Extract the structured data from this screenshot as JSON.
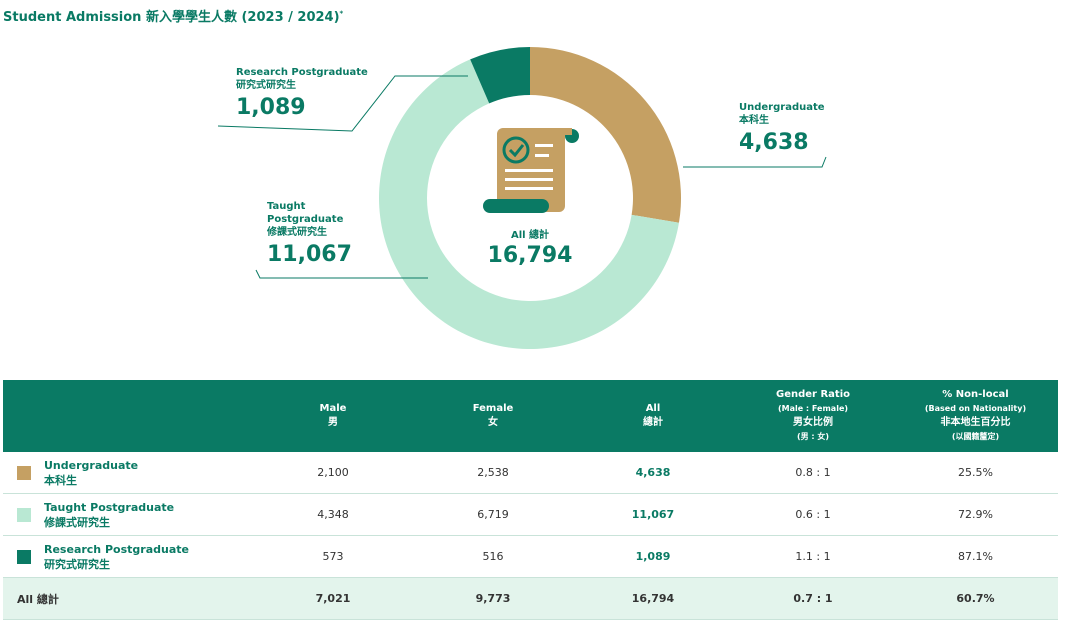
{
  "title": "Student Admission 新入學學生人數 (2023 / 2024)",
  "title_mark": "*",
  "center": {
    "label": "All 總計",
    "value": "16,794"
  },
  "colors": {
    "undergraduate": "#c5a063",
    "taught": "#b9e8d3",
    "research": "#0a7a64",
    "header": "#0a7a64"
  },
  "chart_data": {
    "type": "pie",
    "style": "donut",
    "total": 16794,
    "slices": [
      {
        "label_en": "Undergraduate",
        "label_zh": "本科生",
        "value": 4638,
        "display": "4,638",
        "color": "#c5a063"
      },
      {
        "label_en": "Taught Postgraduate",
        "label_zh": "修課式研究生",
        "value": 11067,
        "display": "11,067",
        "color": "#b9e8d3"
      },
      {
        "label_en": "Research Postgraduate",
        "label_zh": "研究式研究生",
        "value": 1089,
        "display": "1,089",
        "color": "#0a7a64"
      }
    ]
  },
  "callouts": {
    "research": {
      "name1": "Research Postgraduate",
      "name2": "研究式研究生",
      "value": "1,089"
    },
    "undergrad": {
      "name1": "Undergraduate",
      "name2": "本科生",
      "value": "4,638"
    },
    "taught": {
      "name1": "Taught",
      "name2": "Postgraduate",
      "name3": "修課式研究生",
      "value": "11,067"
    }
  },
  "table": {
    "headers": {
      "male": {
        "en": "Male",
        "zh": "男"
      },
      "female": {
        "en": "Female",
        "zh": "女"
      },
      "all": {
        "en": "All",
        "zh": "總計"
      },
      "ratio": {
        "en": "Gender Ratio",
        "sub": "(Male : Female)",
        "zh": "男女比例",
        "zh_sub": "(男 : 女)"
      },
      "nonlocal": {
        "en": "% Non-local",
        "sub": "(Based on Nationality)",
        "zh": "非本地生百分比",
        "zh_sub": "(以國籍釐定)"
      }
    },
    "rows": [
      {
        "en": "Undergraduate",
        "zh": "本科生",
        "male": "2,100",
        "female": "2,538",
        "all": "4,638",
        "ratio": "0.8 : 1",
        "nonlocal": "25.5%"
      },
      {
        "en": "Taught Postgraduate",
        "zh": "修課式研究生",
        "male": "4,348",
        "female": "6,719",
        "all": "11,067",
        "ratio": "0.6 : 1",
        "nonlocal": "72.9%"
      },
      {
        "en": "Research Postgraduate",
        "zh": "研究式研究生",
        "male": "573",
        "female": "516",
        "all": "1,089",
        "ratio": "1.1 : 1",
        "nonlocal": "87.1%"
      }
    ],
    "total": {
      "label": "All 總計",
      "male": "7,021",
      "female": "9,773",
      "all": "16,794",
      "ratio": "0.7 : 1",
      "nonlocal": "60.7%"
    }
  }
}
